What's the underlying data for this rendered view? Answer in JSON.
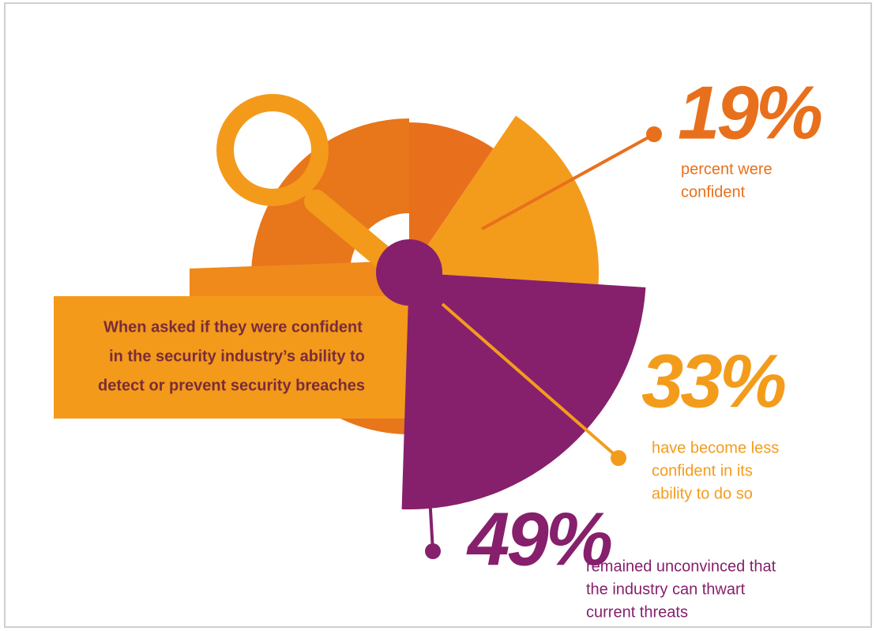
{
  "chart_data": {
    "type": "pie",
    "title": [
      "When asked if they were confident",
      "in the security industry’s ability to",
      "detect or prevent security breaches"
    ],
    "labels": [
      [
        "percent were",
        "confident"
      ],
      [
        "have become less",
        "confident in its",
        "ability to do so"
      ],
      [
        "remained unconvinced that",
        "the industry can thwart",
        "current threats"
      ]
    ],
    "values": [
      19,
      33,
      49
    ],
    "value_labels": [
      "19%",
      "33%",
      "49%"
    ],
    "colors": [
      "#e8701c",
      "#f39c1c",
      "#86206c"
    ]
  }
}
